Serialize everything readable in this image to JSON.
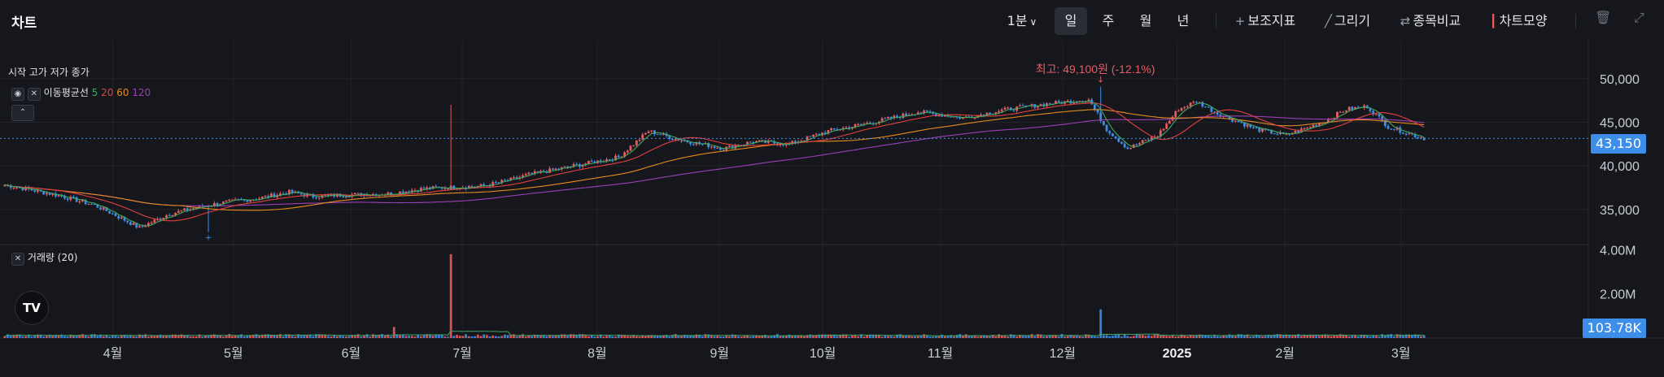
{
  "header": {
    "title": "차트",
    "interval": "1분",
    "periods": [
      "일",
      "주",
      "월",
      "년"
    ],
    "active_period": "일",
    "tools": {
      "indicators": "보조지표",
      "draw": "그리기",
      "compare": "종목비교",
      "chart_style": "차트모양"
    }
  },
  "legend": {
    "ohlc": "시작 고가 저가 종가",
    "ma_label": "이동평균선",
    "ma_periods": [
      "5",
      "20",
      "60",
      "120"
    ],
    "volume_label": "거래량 (20)"
  },
  "price_axis": {
    "ticks": [
      "50,000",
      "45,000",
      "40,000",
      "35,000"
    ],
    "current": "43,150"
  },
  "volume_axis": {
    "ticks": [
      "4.00M",
      "2.00M"
    ],
    "current": "103.78K"
  },
  "high_marker": "최고: 49,100원 (-12.1%)",
  "colors": {
    "up": "#e85a5e",
    "down": "#3d8ee8",
    "ma5": "#3ea863",
    "ma20": "#e0413f",
    "ma60": "#e88a1e",
    "ma120": "#9a3fb7",
    "background": "#16171c"
  },
  "chart_data": {
    "type": "candlestick",
    "xlabels": [
      "4월",
      "5월",
      "6월",
      "7월",
      "8월",
      "9월",
      "10월",
      "11월",
      "12월",
      "2025",
      "2월",
      "3월"
    ],
    "xlabel_positions": [
      0.071,
      0.147,
      0.221,
      0.291,
      0.376,
      0.453,
      0.518,
      0.592,
      0.669,
      0.741,
      0.809,
      0.882
    ],
    "ylim": [
      32000,
      52500
    ],
    "anchors": [
      [
        0,
        37800
      ],
      [
        8,
        37300
      ],
      [
        18,
        36600
      ],
      [
        30,
        35500
      ],
      [
        36,
        34500
      ],
      [
        45,
        32900
      ],
      [
        55,
        34500
      ],
      [
        65,
        35300
      ],
      [
        75,
        35900
      ],
      [
        85,
        36300
      ],
      [
        95,
        37000
      ],
      [
        103,
        36500
      ],
      [
        115,
        36700
      ],
      [
        128,
        36800
      ],
      [
        140,
        37400
      ],
      [
        153,
        37600
      ],
      [
        160,
        37700
      ],
      [
        170,
        38500
      ],
      [
        175,
        39000
      ],
      [
        190,
        40000
      ],
      [
        205,
        41000
      ],
      [
        215,
        44000
      ],
      [
        225,
        43000
      ],
      [
        240,
        42000
      ],
      [
        250,
        42800
      ],
      [
        262,
        42500
      ],
      [
        275,
        44000
      ],
      [
        290,
        45000
      ],
      [
        305,
        46200
      ],
      [
        320,
        45500
      ],
      [
        335,
        46500
      ],
      [
        350,
        47200
      ],
      [
        362,
        47600
      ],
      [
        368,
        44200
      ],
      [
        375,
        42000
      ],
      [
        385,
        43500
      ],
      [
        392,
        46500
      ],
      [
        398,
        47400
      ],
      [
        405,
        46000
      ],
      [
        418,
        44200
      ],
      [
        428,
        43500
      ],
      [
        440,
        45000
      ],
      [
        448,
        46500
      ],
      [
        455,
        46800
      ],
      [
        462,
        44500
      ],
      [
        468,
        43800
      ],
      [
        474,
        43150
      ]
    ],
    "spikes": [
      [
        68,
        32400,
        "low"
      ],
      [
        149,
        47000,
        "high"
      ],
      [
        366,
        49100,
        "high"
      ]
    ],
    "volume_spikes": [
      [
        149,
        3.8
      ],
      [
        366,
        1.3
      ],
      [
        130,
        0.5
      ]
    ],
    "volume_ylim": [
      0,
      4200000
    ]
  }
}
